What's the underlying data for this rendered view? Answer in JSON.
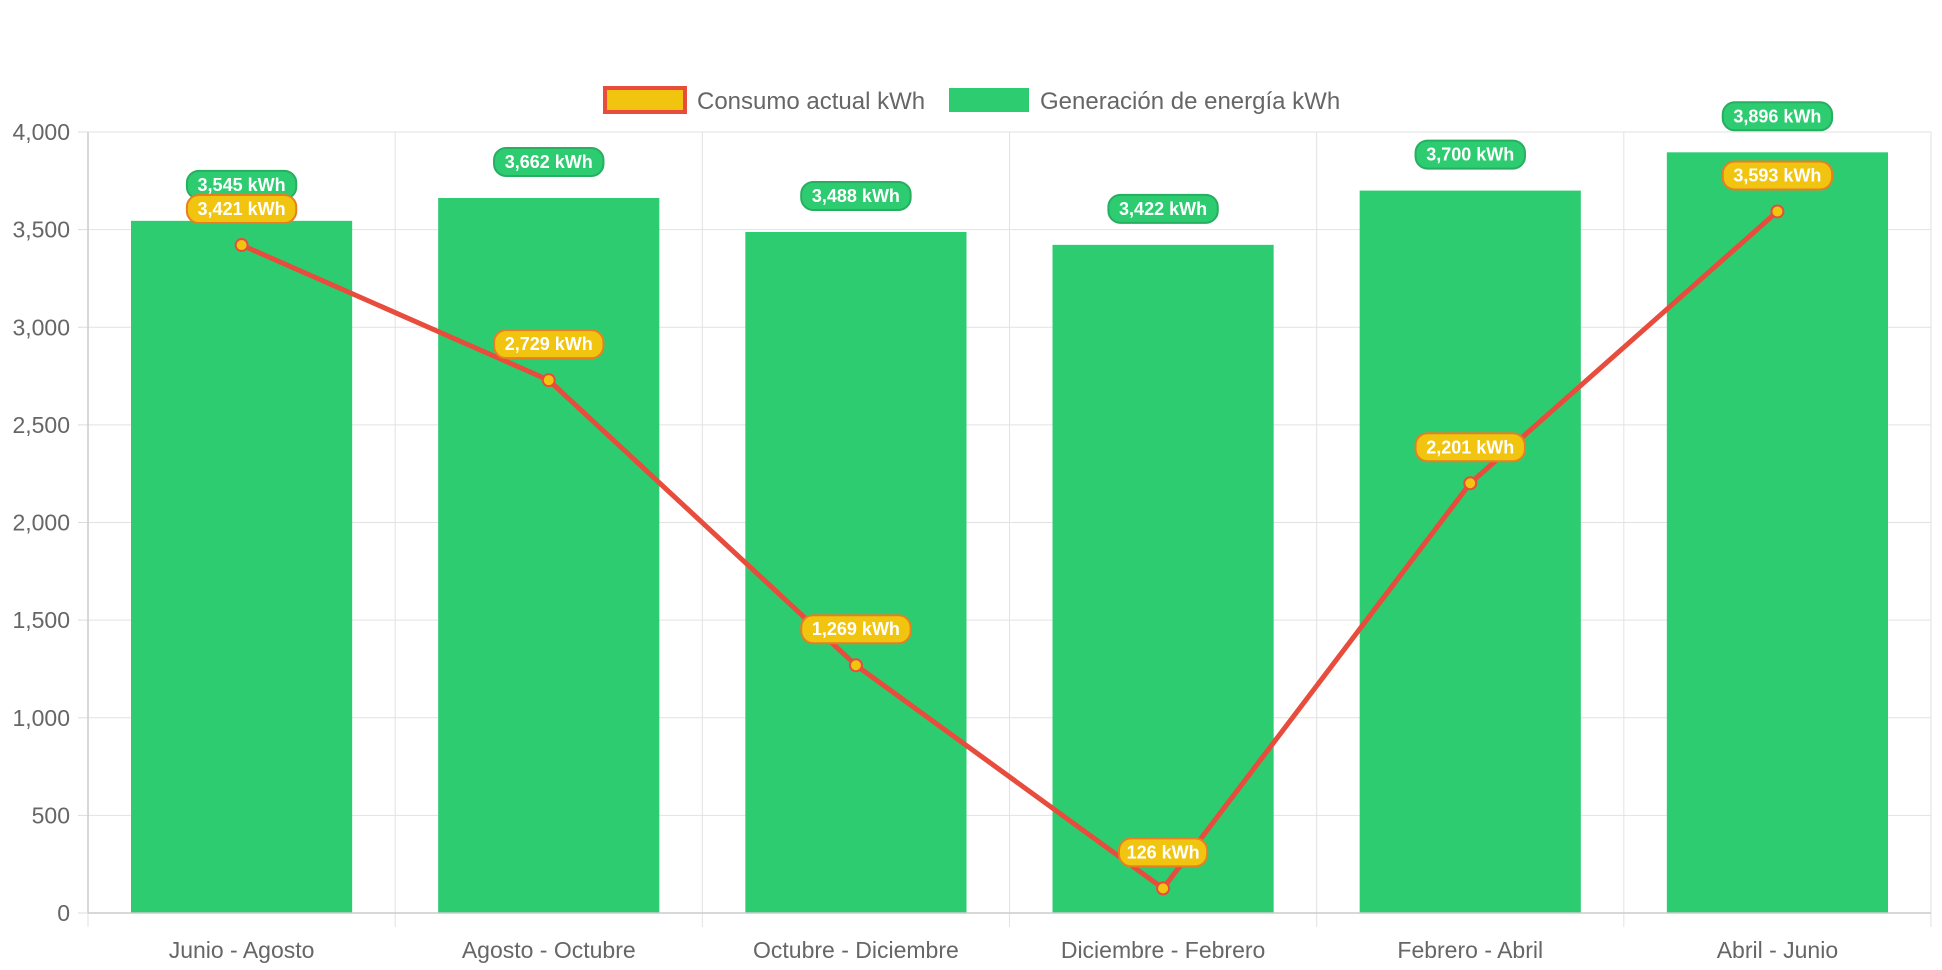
{
  "chart_data": {
    "type": "bar",
    "categories": [
      "Junio - Agosto",
      "Agosto - Octubre",
      "Octubre - Diciembre",
      "Diciembre - Febrero",
      "Febrero - Abril",
      "Abril - Junio"
    ],
    "series": [
      {
        "name": "Consumo actual kWh",
        "type": "line",
        "values": [
          3421,
          2729,
          1269,
          126,
          2201,
          3593
        ],
        "labels": [
          "3,421 kWh",
          "2,729 kWh",
          "1,269 kWh",
          "126 kWh",
          "2,201 kWh",
          "3,593 kWh"
        ],
        "color": "#e74c3c",
        "fill": "#f1c40f"
      },
      {
        "name": "Generación de energía kWh",
        "type": "bar",
        "values": [
          3545,
          3662,
          3488,
          3422,
          3700,
          3896
        ],
        "labels": [
          "3,545 kWh",
          "3,662 kWh",
          "3,488 kWh",
          "3,422 kWh",
          "3,700 kWh",
          "3,896 kWh"
        ],
        "color": "#2ecc71"
      }
    ],
    "ylim": [
      0,
      4000
    ],
    "yticks": [
      0,
      500,
      1000,
      1500,
      2000,
      2500,
      3000,
      3500,
      4000
    ],
    "ytick_labels": [
      "0",
      "500",
      "1,000",
      "1,500",
      "2,000",
      "2,500",
      "3,000",
      "3,500",
      "4,000"
    ],
    "grid": true,
    "legend": "top-center",
    "title": "",
    "xlabel": "",
    "ylabel": ""
  }
}
